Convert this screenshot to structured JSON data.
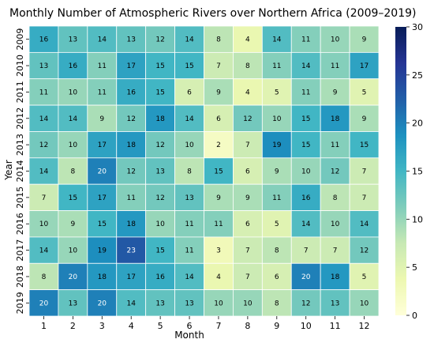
{
  "chart_data": {
    "type": "heatmap",
    "title": "Monthly Number of Atmospheric Rivers over Northern Africa (2009–2019)",
    "xlabel": "Month",
    "ylabel": "Year",
    "x": [
      "1",
      "2",
      "3",
      "4",
      "5",
      "6",
      "7",
      "8",
      "9",
      "10",
      "11",
      "12"
    ],
    "y": [
      "2009",
      "2010",
      "2011",
      "2012",
      "2013",
      "2014",
      "2015",
      "2016",
      "2017",
      "2018",
      "2019"
    ],
    "values": [
      [
        16,
        13,
        14,
        13,
        12,
        14,
        8,
        4,
        14,
        11,
        10,
        9
      ],
      [
        13,
        16,
        11,
        17,
        15,
        15,
        7,
        8,
        11,
        14,
        11,
        17
      ],
      [
        11,
        10,
        11,
        16,
        15,
        6,
        9,
        4,
        5,
        11,
        9,
        5
      ],
      [
        14,
        14,
        9,
        12,
        18,
        14,
        6,
        12,
        10,
        15,
        18,
        9
      ],
      [
        12,
        10,
        17,
        18,
        12,
        10,
        2,
        7,
        19,
        15,
        11,
        15
      ],
      [
        14,
        8,
        20,
        12,
        13,
        8,
        15,
        6,
        9,
        10,
        12,
        7
      ],
      [
        7,
        15,
        17,
        11,
        12,
        13,
        9,
        9,
        11,
        16,
        8,
        7
      ],
      [
        10,
        9,
        15,
        18,
        10,
        11,
        11,
        6,
        5,
        14,
        10,
        14
      ],
      [
        14,
        10,
        19,
        23,
        15,
        11,
        3,
        7,
        8,
        7,
        7,
        12
      ],
      [
        8,
        20,
        18,
        17,
        16,
        14,
        4,
        7,
        6,
        20,
        18,
        5
      ],
      [
        20,
        13,
        20,
        14,
        13,
        13,
        10,
        10,
        8,
        12,
        13,
        10
      ]
    ],
    "colorbar": {
      "colormap": "YlGnBu",
      "range": [
        0,
        30
      ],
      "ticks": [
        "0",
        "5",
        "10",
        "15",
        "20",
        "25",
        "30"
      ]
    }
  }
}
